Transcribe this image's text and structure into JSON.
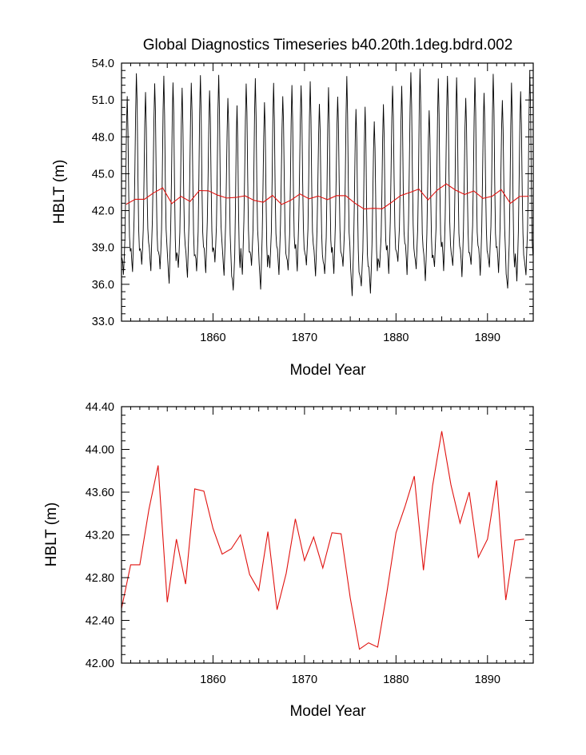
{
  "colors": {
    "monthly": "#000000",
    "annual": "#e0120f"
  },
  "chart_data": [
    {
      "type": "line",
      "title": "Global Diagnostics Timeseries b40.20th.1deg.bdrd.002",
      "xlabel": "Model Year",
      "ylabel": "HBLT (m)",
      "xlim": [
        1850,
        1895
      ],
      "ylim": [
        33.0,
        54.0
      ],
      "xticks": [
        1860,
        1870,
        1880,
        1890
      ],
      "xtick_labels": [
        "1860",
        "1870",
        "1880",
        "1890"
      ],
      "yticks": [
        33.0,
        36.0,
        39.0,
        42.0,
        45.0,
        48.0,
        51.0,
        54.0
      ],
      "ytick_labels": [
        "33.0",
        "36.0",
        "39.0",
        "42.0",
        "45.0",
        "48.0",
        "51.0",
        "54.0"
      ],
      "series": [
        {
          "name": "monthly",
          "color": "#000000",
          "monthly_pattern": [
            38.6,
            37.9,
            36.9,
            38.7,
            40.7,
            44.8,
            49.8,
            52.8,
            50.0,
            44.3,
            40.3,
            38.8
          ],
          "yearly_peaks": [
            51.2,
            53.3,
            51.5,
            52.5,
            52.8,
            52.6,
            51.8,
            52.6,
            52.8,
            52.0,
            52.8,
            51.4,
            50.3,
            52.6,
            52.5,
            51.1,
            52.1,
            51.6,
            51.9,
            52.5,
            52.2,
            51.0,
            51.7,
            51.6,
            52.6,
            50.6,
            50.1,
            49.6,
            50.3,
            52.5,
            51.8,
            53.6,
            53.2,
            50.5,
            52.4,
            53.3,
            52.5,
            51.5,
            52.5,
            51.9,
            52.8,
            51.3,
            52.1,
            52.0,
            53.1
          ],
          "yearly_troughs": [
            36.6,
            37.2,
            37.4,
            37.3,
            37.0,
            36.3,
            37.1,
            36.8,
            36.8,
            37.2,
            37.5,
            37.0,
            35.2,
            37.1,
            37.2,
            35.9,
            37.0,
            37.1,
            36.8,
            37.4,
            37.2,
            37.0,
            36.5,
            37.2,
            37.1,
            35.4,
            35.5,
            35.6,
            37.0,
            37.2,
            37.5,
            37.1,
            36.9,
            36.6,
            37.1,
            37.4,
            37.2,
            36.9,
            37.3,
            37.0,
            37.1,
            37.2,
            35.4,
            36.5,
            36.5
          ]
        },
        {
          "name": "annual mean",
          "color": "#e0120f",
          "x": [
            1850.5,
            1851.5,
            1852.5,
            1853.5,
            1854.5,
            1855.5,
            1856.5,
            1857.5,
            1858.5,
            1859.5,
            1860.5,
            1861.5,
            1862.5,
            1863.5,
            1864.5,
            1865.5,
            1866.5,
            1867.5,
            1868.5,
            1869.5,
            1870.5,
            1871.5,
            1872.5,
            1873.5,
            1874.5,
            1875.5,
            1876.5,
            1877.5,
            1878.5,
            1879.5,
            1880.5,
            1881.5,
            1882.5,
            1883.5,
            1884.5,
            1885.5,
            1886.5,
            1887.5,
            1888.5,
            1889.5,
            1890.5,
            1891.5,
            1892.5,
            1893.5,
            1894.5
          ],
          "values": [
            42.51,
            42.92,
            42.92,
            43.44,
            43.85,
            42.57,
            43.16,
            42.74,
            43.63,
            43.61,
            43.26,
            43.02,
            43.07,
            43.2,
            42.83,
            42.68,
            43.23,
            42.5,
            42.84,
            43.35,
            42.96,
            43.18,
            42.89,
            43.22,
            43.21,
            42.61,
            42.13,
            42.19,
            42.15,
            42.66,
            43.22,
            43.47,
            43.75,
            42.87,
            43.66,
            44.17,
            43.67,
            43.31,
            43.6,
            42.99,
            43.16,
            43.71,
            42.59,
            43.15,
            43.16
          ]
        }
      ]
    },
    {
      "type": "line",
      "title": "",
      "xlabel": "Model Year",
      "ylabel": "HBLT (m)",
      "xlim": [
        1850,
        1895
      ],
      "ylim": [
        42.0,
        44.4
      ],
      "xticks": [
        1860,
        1870,
        1880,
        1890
      ],
      "xtick_labels": [
        "1860",
        "1870",
        "1880",
        "1890"
      ],
      "yticks": [
        42.0,
        42.4,
        42.8,
        43.2,
        43.6,
        44.0,
        44.4
      ],
      "ytick_labels": [
        "42.00",
        "42.40",
        "42.80",
        "43.20",
        "43.60",
        "44.00",
        "44.40"
      ],
      "series": [
        {
          "name": "annual mean",
          "color": "#e0120f",
          "x": [
            1850,
            1851,
            1852,
            1853,
            1854,
            1855,
            1856,
            1857,
            1858,
            1859,
            1860,
            1861,
            1862,
            1863,
            1864,
            1865,
            1866,
            1867,
            1868,
            1869,
            1870,
            1871,
            1872,
            1873,
            1874,
            1875,
            1876,
            1877,
            1878,
            1879,
            1880,
            1881,
            1882,
            1883,
            1884,
            1885,
            1886,
            1887,
            1888,
            1889,
            1890,
            1891,
            1892,
            1893,
            1894
          ],
          "values": [
            42.51,
            42.92,
            42.92,
            43.44,
            43.85,
            42.57,
            43.16,
            42.74,
            43.63,
            43.61,
            43.26,
            43.02,
            43.07,
            43.2,
            42.83,
            42.68,
            43.23,
            42.5,
            42.84,
            43.35,
            42.96,
            43.18,
            42.89,
            43.22,
            43.21,
            42.61,
            42.13,
            42.19,
            42.15,
            42.66,
            43.22,
            43.47,
            43.75,
            42.87,
            43.66,
            44.17,
            43.67,
            43.31,
            43.6,
            42.99,
            43.16,
            43.71,
            42.59,
            43.15,
            43.16
          ]
        }
      ]
    }
  ]
}
